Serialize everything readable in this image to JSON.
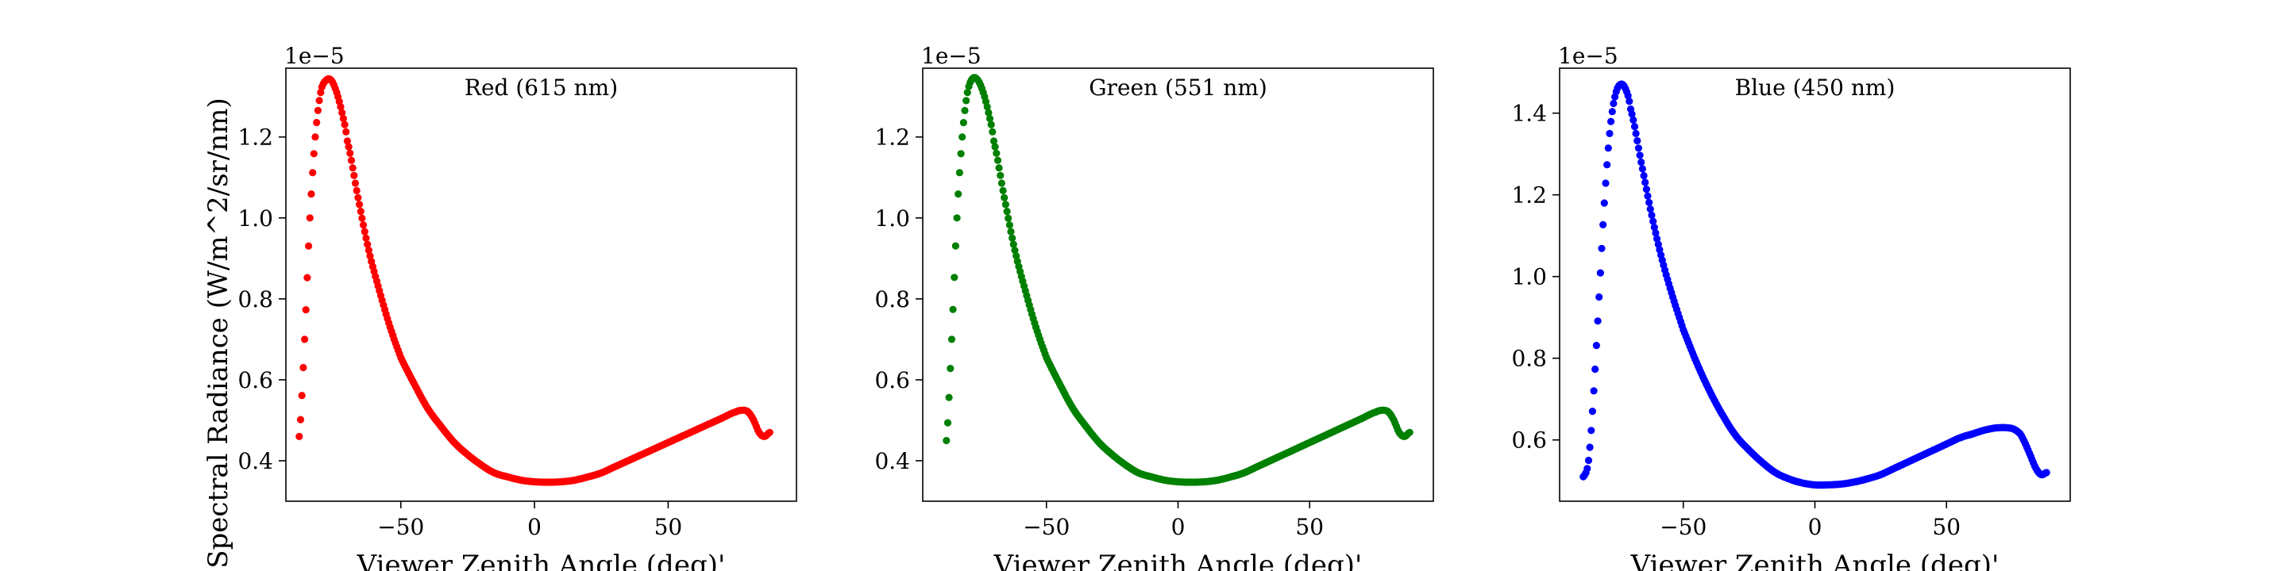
{
  "figure": {
    "ylabel": "Spectral Radiance (W/m^2/sr/nm)"
  },
  "chart_data": [
    {
      "type": "scatter",
      "title": "Red (615 nm)",
      "xlabel": "Viewer Zenith Angle (deg)'",
      "ylabel": "Spectral Radiance (W/m^2/sr/nm)",
      "y_offset_text": "1e−5",
      "y_scale_factor": 1e-05,
      "color": "#ff0000",
      "xlim": [
        -93,
        98
      ],
      "ylim": [
        0.3,
        1.37
      ],
      "xticks": [
        -50,
        0,
        50
      ],
      "xtick_labels": [
        "−50",
        "0",
        "50"
      ],
      "yticks": [
        0.4,
        0.6,
        0.8,
        1.0,
        1.2
      ],
      "ytick_labels": [
        "0.4",
        "0.6",
        "0.8",
        "1.0",
        "1.2"
      ],
      "curve": {
        "x": [
          -88,
          -86,
          -84,
          -82,
          -80,
          -78,
          -76,
          -74,
          -72,
          -70,
          -66,
          -62,
          -58,
          -54,
          -50,
          -45,
          -40,
          -35,
          -30,
          -25,
          -20,
          -15,
          -10,
          -5,
          0,
          5,
          10,
          15,
          20,
          25,
          30,
          35,
          40,
          45,
          50,
          55,
          60,
          65,
          70,
          75,
          78,
          80,
          82,
          84,
          86,
          88
        ],
        "y": [
          0.46,
          0.7,
          1.0,
          1.2,
          1.31,
          1.34,
          1.34,
          1.31,
          1.26,
          1.19,
          1.05,
          0.92,
          0.82,
          0.73,
          0.655,
          0.59,
          0.53,
          0.485,
          0.445,
          0.415,
          0.39,
          0.37,
          0.36,
          0.352,
          0.348,
          0.347,
          0.348,
          0.352,
          0.36,
          0.37,
          0.385,
          0.4,
          0.415,
          0.43,
          0.445,
          0.46,
          0.475,
          0.49,
          0.505,
          0.52,
          0.525,
          0.52,
          0.5,
          0.47,
          0.46,
          0.47
        ]
      }
    },
    {
      "type": "scatter",
      "title": "Green (551 nm)",
      "xlabel": "Viewer Zenith Angle (deg)'",
      "ylabel": "",
      "y_offset_text": "1e−5",
      "y_scale_factor": 1e-05,
      "color": "#008000",
      "xlim": [
        -97,
        97
      ],
      "ylim": [
        0.3,
        1.37
      ],
      "xticks": [
        -50,
        0,
        50
      ],
      "xtick_labels": [
        "−50",
        "0",
        "50"
      ],
      "yticks": [
        0.4,
        0.6,
        0.8,
        1.0,
        1.2
      ],
      "ytick_labels": [
        "0.4",
        "0.6",
        "0.8",
        "1.0",
        "1.2"
      ],
      "curve": {
        "x": [
          -88,
          -86,
          -84,
          -82,
          -80,
          -78,
          -76,
          -74,
          -72,
          -70,
          -66,
          -62,
          -58,
          -54,
          -50,
          -45,
          -40,
          -35,
          -30,
          -25,
          -20,
          -15,
          -10,
          -5,
          0,
          5,
          10,
          15,
          20,
          25,
          30,
          35,
          40,
          45,
          50,
          55,
          60,
          65,
          70,
          75,
          78,
          80,
          82,
          84,
          86,
          88
        ],
        "y": [
          0.45,
          0.7,
          1.0,
          1.2,
          1.31,
          1.345,
          1.34,
          1.31,
          1.26,
          1.19,
          1.05,
          0.92,
          0.82,
          0.73,
          0.655,
          0.59,
          0.53,
          0.485,
          0.445,
          0.415,
          0.39,
          0.37,
          0.36,
          0.352,
          0.348,
          0.347,
          0.348,
          0.352,
          0.36,
          0.37,
          0.385,
          0.4,
          0.415,
          0.43,
          0.445,
          0.46,
          0.475,
          0.49,
          0.505,
          0.52,
          0.525,
          0.52,
          0.5,
          0.47,
          0.46,
          0.47
        ]
      }
    },
    {
      "type": "scatter",
      "title": "Blue (450 nm)",
      "xlabel": "Viewer Zenith Angle (deg)'",
      "ylabel": "",
      "y_offset_text": "1e−5",
      "y_scale_factor": 1e-05,
      "color": "#0000ff",
      "xlim": [
        -97,
        97
      ],
      "ylim": [
        0.45,
        1.51
      ],
      "xticks": [
        -50,
        0,
        50
      ],
      "xtick_labels": [
        "−50",
        "0",
        "50"
      ],
      "yticks": [
        0.6,
        0.8,
        1.0,
        1.2,
        1.4
      ],
      "ytick_labels": [
        "0.6",
        "0.8",
        "1.0",
        "1.2",
        "1.4"
      ],
      "curve": {
        "x": [
          -88,
          -86,
          -84,
          -82,
          -80,
          -78,
          -76,
          -74,
          -72,
          -70,
          -66,
          -62,
          -58,
          -54,
          -50,
          -45,
          -40,
          -35,
          -30,
          -25,
          -20,
          -15,
          -10,
          -5,
          0,
          5,
          10,
          15,
          20,
          25,
          30,
          35,
          40,
          45,
          50,
          55,
          60,
          65,
          70,
          75,
          78,
          80,
          82,
          84,
          86,
          88
        ],
        "y": [
          0.51,
          0.55,
          0.72,
          0.95,
          1.18,
          1.35,
          1.44,
          1.47,
          1.46,
          1.41,
          1.28,
          1.15,
          1.04,
          0.95,
          0.87,
          0.79,
          0.72,
          0.66,
          0.61,
          0.575,
          0.545,
          0.52,
          0.505,
          0.495,
          0.49,
          0.49,
          0.492,
          0.497,
          0.505,
          0.515,
          0.53,
          0.545,
          0.56,
          0.575,
          0.59,
          0.605,
          0.615,
          0.625,
          0.63,
          0.628,
          0.615,
          0.59,
          0.56,
          0.53,
          0.515,
          0.52
        ]
      }
    }
  ]
}
